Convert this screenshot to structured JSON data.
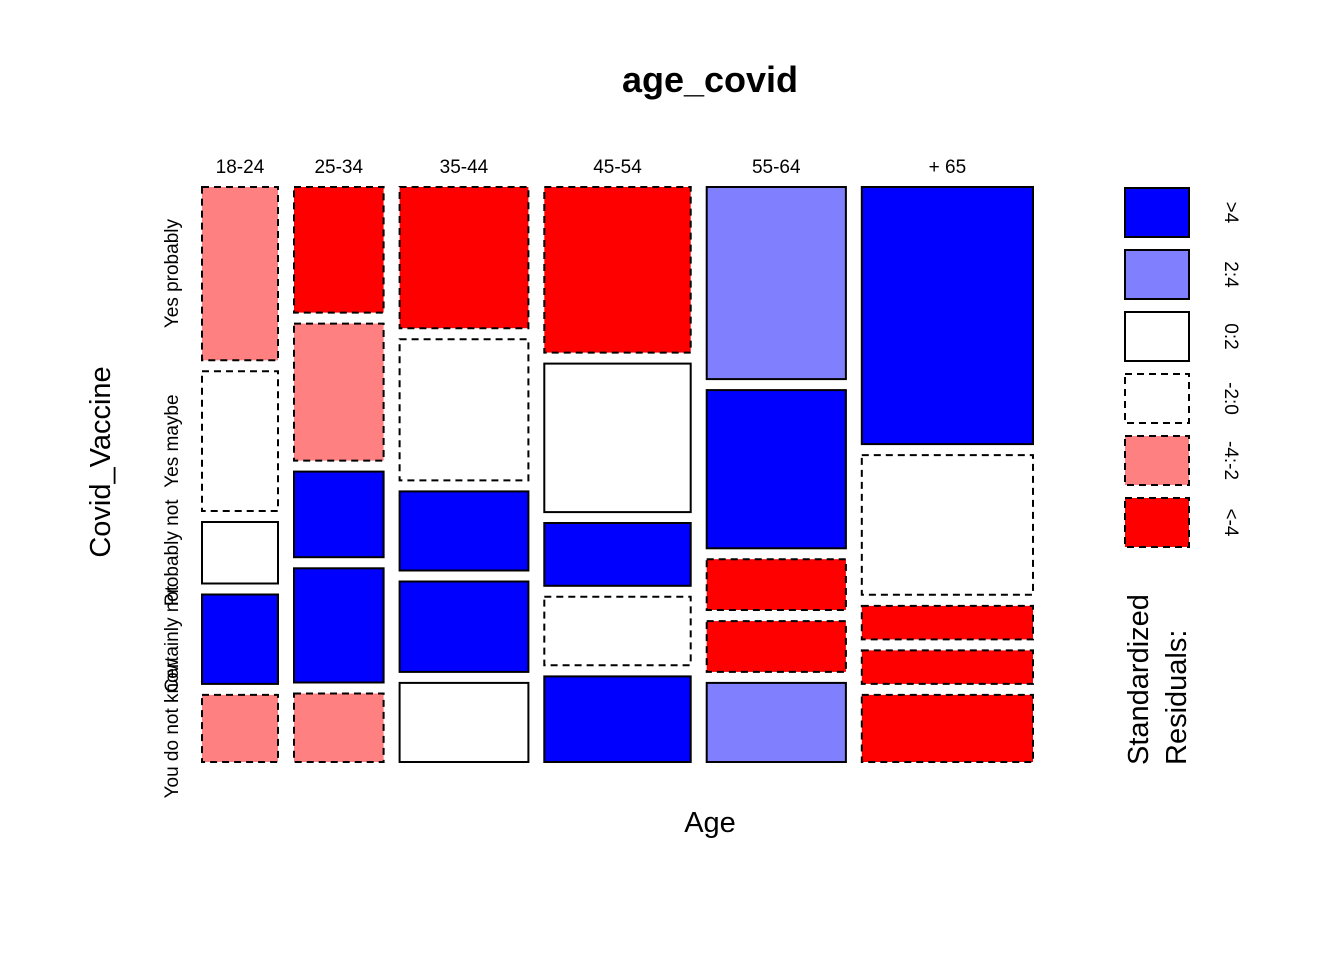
{
  "chart_data": {
    "type": "mosaic",
    "title": "age_covid",
    "xlabel": "Age",
    "ylabel": "Covid_Vaccine",
    "x_categories": [
      "18-24",
      "25-34",
      "35-44",
      "45-54",
      "55-64",
      "+ 65"
    ],
    "x_proportions": [
      0.095,
      0.112,
      0.161,
      0.183,
      0.174,
      0.214
    ],
    "y_categories": [
      "Yes probably",
      "Yes maybe",
      "Probably not",
      "Certainly not",
      "You do not know"
    ],
    "residual_classes": [
      "<-4",
      "-4:-2",
      "-2:0",
      "0:2",
      "2:4",
      ">4"
    ],
    "class_colors": {
      "<-4": "#ff0000",
      "-4:-2": "#ff8080",
      "-2:0": "#ffffff",
      "0:2": "#ffffff",
      "2:4": "#8080ff",
      ">4": "#0000ff"
    },
    "cells": [
      {
        "age": "18-24",
        "segments": [
          {
            "vaccine": "Yes probably",
            "share": 0.31,
            "class": "-4:-2"
          },
          {
            "vaccine": "Yes maybe",
            "share": 0.25,
            "class": "-2:0"
          },
          {
            "vaccine": "Probably not",
            "share": 0.11,
            "class": "0:2"
          },
          {
            "vaccine": "Certainly not",
            "share": 0.16,
            "class": ">4"
          },
          {
            "vaccine": "You do not know",
            "share": 0.12,
            "class": "-4:-2"
          }
        ]
      },
      {
        "age": "25-34",
        "segments": [
          {
            "vaccine": "Yes probably",
            "share": 0.22,
            "class": "<-4"
          },
          {
            "vaccine": "Yes maybe",
            "share": 0.24,
            "class": "-4:-2"
          },
          {
            "vaccine": "Probably not",
            "share": 0.15,
            "class": ">4"
          },
          {
            "vaccine": "Certainly not",
            "share": 0.2,
            "class": ">4"
          },
          {
            "vaccine": "You do not know",
            "share": 0.12,
            "class": "-4:-2"
          }
        ]
      },
      {
        "age": "35-44",
        "segments": [
          {
            "vaccine": "Yes probably",
            "share": 0.25,
            "class": "<-4"
          },
          {
            "vaccine": "Yes maybe",
            "share": 0.25,
            "class": "-2:0"
          },
          {
            "vaccine": "Probably not",
            "share": 0.14,
            "class": ">4"
          },
          {
            "vaccine": "Certainly not",
            "share": 0.16,
            "class": ">4"
          },
          {
            "vaccine": "You do not know",
            "share": 0.14,
            "class": "0:2"
          }
        ]
      },
      {
        "age": "45-54",
        "segments": [
          {
            "vaccine": "Yes probably",
            "share": 0.29,
            "class": "<-4"
          },
          {
            "vaccine": "Yes maybe",
            "share": 0.26,
            "class": "0:2"
          },
          {
            "vaccine": "Probably not",
            "share": 0.11,
            "class": ">4"
          },
          {
            "vaccine": "Certainly not",
            "share": 0.12,
            "class": "-2:0"
          },
          {
            "vaccine": "You do not know",
            "share": 0.15,
            "class": ">4"
          }
        ]
      },
      {
        "age": "55-64",
        "segments": [
          {
            "vaccine": "Yes probably",
            "share": 0.34,
            "class": "2:4"
          },
          {
            "vaccine": "Yes maybe",
            "share": 0.28,
            "class": ">4"
          },
          {
            "vaccine": "Probably not",
            "share": 0.09,
            "class": "<-4"
          },
          {
            "vaccine": "Certainly not",
            "share": 0.09,
            "class": "<-4"
          },
          {
            "vaccine": "You do not know",
            "share": 0.14,
            "class": "2:4"
          }
        ]
      },
      {
        "age": "+ 65",
        "segments": [
          {
            "vaccine": "Yes probably",
            "share": 0.46,
            "class": ">4"
          },
          {
            "vaccine": "Yes maybe",
            "share": 0.25,
            "class": "-2:0"
          },
          {
            "vaccine": "Probably not",
            "share": 0.06,
            "class": "<-4"
          },
          {
            "vaccine": "Certainly not",
            "share": 0.06,
            "class": "<-4"
          },
          {
            "vaccine": "You do not know",
            "share": 0.12,
            "class": "<-4"
          }
        ]
      }
    ],
    "legend": {
      "title_lines": [
        "Standardized",
        "Residuals:"
      ],
      "entries": [
        {
          "label": ">4",
          "class": ">4"
        },
        {
          "label": "2:4",
          "class": "2:4"
        },
        {
          "label": "0:2",
          "class": "0:2"
        },
        {
          "label": "-2:0",
          "class": "-2:0"
        },
        {
          "label": "-4:-2",
          "class": "-4:-2"
        },
        {
          "label": "<-4",
          "class": "<-4"
        }
      ],
      "placement": "right"
    }
  }
}
